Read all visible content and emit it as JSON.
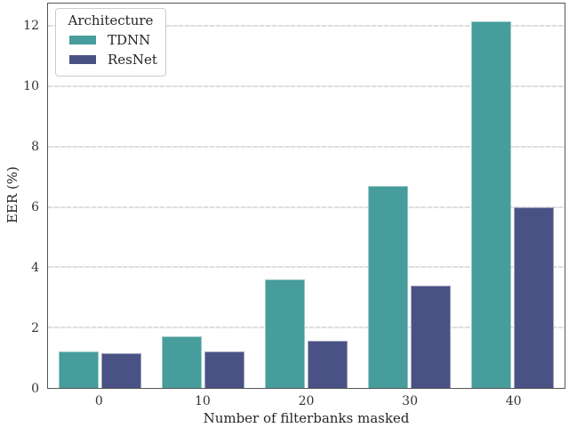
{
  "chart_data": {
    "type": "bar",
    "title": "",
    "xlabel": "Number of filterbanks masked",
    "ylabel": "EER (%)",
    "categories": [
      "0",
      "10",
      "20",
      "30",
      "40"
    ],
    "series": [
      {
        "name": "TDNN",
        "color": "#469d9b",
        "values": [
          1.2,
          1.7,
          3.6,
          6.7,
          12.15
        ]
      },
      {
        "name": "ResNet",
        "color": "#4a5285",
        "values": [
          1.15,
          1.2,
          1.55,
          3.4,
          6.0
        ]
      }
    ],
    "ylim": [
      0,
      12.75
    ],
    "yticks": [
      0,
      2,
      4,
      6,
      8,
      10,
      12
    ],
    "grid": "horizontal-dashed",
    "legend": {
      "title": "Architecture",
      "position": "upper-left"
    }
  },
  "style_colors": {
    "spine": "#565656",
    "gridline": "#dedede",
    "tick_text": "#333333",
    "label_text": "#262626"
  }
}
